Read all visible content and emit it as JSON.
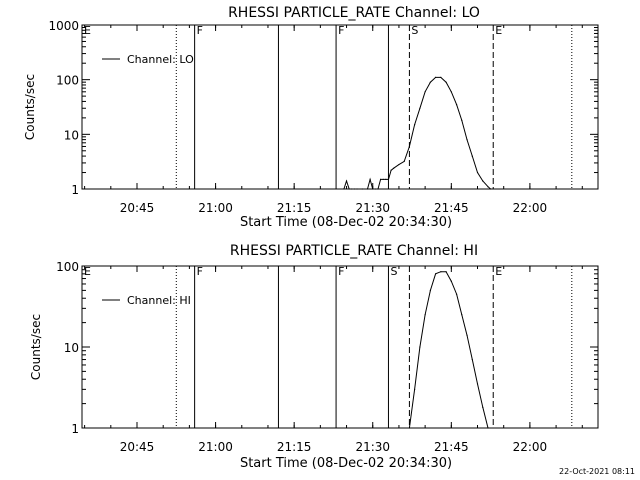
{
  "chart_data": [
    {
      "type": "line",
      "title": "RHESSI PARTICLE_RATE Channel: LO",
      "xlabel": "Start Time (08-Dec-02 20:34:30)",
      "ylabel": "Counts/sec",
      "y_scale": "log",
      "ylim": [
        1,
        1000
      ],
      "xlim": [
        "20:34:30",
        "22:13:00"
      ],
      "x_ticks": [
        "20:45",
        "21:00",
        "21:15",
        "21:30",
        "21:45",
        "22:00"
      ],
      "y_ticks": [
        "1",
        "10",
        "100",
        "1000"
      ],
      "legend": {
        "position": "top-left",
        "label": "Channel: LO"
      },
      "markers": [
        {
          "label": "E",
          "time": "20:34:30",
          "style": "dotted"
        },
        {
          "label": "",
          "time": "20:52:30",
          "style": "dotted"
        },
        {
          "label": "F",
          "time": "20:56:00",
          "style": "solid"
        },
        {
          "label": "",
          "time": "21:12:00",
          "style": "solid"
        },
        {
          "label": "F",
          "time": "21:23:00",
          "style": "solid"
        },
        {
          "label": "",
          "time": "21:33:00",
          "style": "solid"
        },
        {
          "label": "S",
          "time": "21:37:00",
          "style": "dashed"
        },
        {
          "label": "E",
          "time": "21:53:00",
          "style": "dashed"
        },
        {
          "label": "",
          "time": "22:08:00",
          "style": "dotted"
        }
      ],
      "series": [
        {
          "x": [
            "21:24:30",
            "21:25:00",
            "21:25:30",
            "21:26:00",
            "21:26:30",
            "21:27:00",
            "21:28:00",
            "21:29:00",
            "21:29:30",
            "21:30:00",
            "21:30:30",
            "21:31:00",
            "21:31:30",
            "21:32:00",
            "21:32:30",
            "21:33:00",
            "21:33:30",
            "21:34:00",
            "21:35:00",
            "21:36:00",
            "21:37:00",
            "21:38:00",
            "21:39:00",
            "21:40:00",
            "21:41:00",
            "21:42:00",
            "21:43:00",
            "21:44:00",
            "21:45:00",
            "21:46:00",
            "21:47:00",
            "21:48:00",
            "21:49:00",
            "21:50:00",
            "21:51:00",
            "21:52:00",
            "21:52:30"
          ],
          "values": [
            1,
            1.4,
            1,
            1,
            1,
            1,
            1,
            1,
            1.5,
            1,
            1,
            1,
            1.5,
            1.5,
            1.5,
            1.5,
            2.2,
            2.4,
            2.8,
            3.2,
            6,
            15,
            30,
            60,
            90,
            110,
            110,
            90,
            60,
            35,
            18,
            8,
            4,
            2,
            1.4,
            1.1,
            1
          ]
        }
      ]
    },
    {
      "type": "line",
      "title": "RHESSI PARTICLE_RATE Channel: HI",
      "xlabel": "Start Time (08-Dec-02 20:34:30)",
      "ylabel": "Counts/sec",
      "y_scale": "log",
      "ylim": [
        1,
        100
      ],
      "xlim": [
        "20:34:30",
        "22:13:00"
      ],
      "x_ticks": [
        "20:45",
        "21:00",
        "21:15",
        "21:30",
        "21:45",
        "22:00"
      ],
      "y_ticks": [
        "1",
        "10",
        "100"
      ],
      "legend": {
        "position": "top-left",
        "label": "Channel: HI"
      },
      "markers": [
        {
          "label": "E",
          "time": "20:34:30",
          "style": "dotted"
        },
        {
          "label": "",
          "time": "20:52:30",
          "style": "dotted"
        },
        {
          "label": "F",
          "time": "20:56:00",
          "style": "solid"
        },
        {
          "label": "",
          "time": "21:12:00",
          "style": "solid"
        },
        {
          "label": "F",
          "time": "21:23:00",
          "style": "solid"
        },
        {
          "label": "S",
          "time": "21:33:00",
          "style": "solid"
        },
        {
          "label": "",
          "time": "21:37:00",
          "style": "dashed"
        },
        {
          "label": "E",
          "time": "21:53:00",
          "style": "dashed"
        },
        {
          "label": "",
          "time": "22:08:00",
          "style": "dotted"
        }
      ],
      "series": [
        {
          "x": [
            "21:37:00",
            "21:38:00",
            "21:39:00",
            "21:40:00",
            "21:41:00",
            "21:42:00",
            "21:43:00",
            "21:44:00",
            "21:45:00",
            "21:46:00",
            "21:47:00",
            "21:48:00",
            "21:49:00",
            "21:50:00",
            "21:51:00",
            "21:52:00"
          ],
          "values": [
            1,
            3,
            10,
            25,
            50,
            80,
            85,
            85,
            65,
            45,
            25,
            14,
            7,
            3.5,
            1.8,
            1
          ]
        }
      ]
    }
  ],
  "footer": {
    "timestamp": "22-Oct-2021 08:11"
  }
}
